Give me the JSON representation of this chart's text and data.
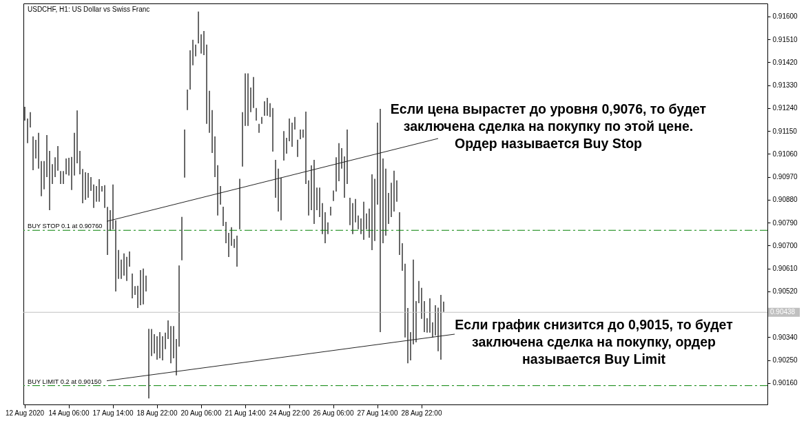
{
  "chart_data": {
    "type": "bar",
    "title": "USDCHF, H1:  US Dollar vs Swiss Franc",
    "categories": [
      "12 Aug 2020",
      null,
      null,
      null,
      null,
      null,
      null,
      null,
      null,
      null,
      null,
      null,
      null,
      null,
      null,
      null,
      "14 Aug 06:00",
      null,
      null,
      null,
      null,
      null,
      null,
      null,
      null,
      null,
      null,
      null,
      null,
      null,
      null,
      null,
      "17 Aug 14:00",
      null,
      null,
      null,
      null,
      null,
      null,
      null,
      null,
      null,
      null,
      null,
      null,
      null,
      null,
      null,
      "18 Aug 22:00",
      null,
      null,
      null,
      null,
      null,
      null,
      null,
      null,
      null,
      null,
      null,
      null,
      null,
      null,
      null,
      "20 Aug 06:00",
      null,
      null,
      null,
      null,
      null,
      null,
      null,
      null,
      null,
      null,
      null,
      null,
      null,
      null,
      null,
      "21 Aug 14:00",
      null,
      null,
      null,
      null,
      null,
      null,
      null,
      null,
      null,
      null,
      null,
      null,
      null,
      null,
      null,
      "24 Aug 22:00",
      null,
      null,
      null,
      null,
      null,
      null,
      null,
      null,
      null,
      null,
      null,
      null,
      null,
      null,
      null,
      "26 Aug 06:00",
      null,
      null,
      null,
      null,
      null,
      null,
      null,
      null,
      null,
      null,
      null,
      null,
      null,
      null,
      null,
      "27 Aug 14:00",
      null,
      null,
      null,
      null,
      null,
      null,
      null,
      null,
      null,
      null,
      null,
      null,
      null,
      null,
      null,
      "28 Aug 22:00",
      null,
      null,
      null,
      null,
      null,
      null,
      null,
      null,
      null,
      null,
      null,
      null,
      null,
      null,
      null,
      null,
      null,
      null,
      null,
      null,
      null,
      null,
      null,
      null,
      null,
      null,
      null,
      null,
      null,
      null,
      null,
      null,
      null,
      null,
      null,
      null,
      null,
      null,
      null,
      null,
      null,
      null,
      null,
      null,
      null,
      null,
      null,
      null,
      null,
      null,
      null,
      null,
      null,
      null,
      null,
      null,
      null,
      null,
      null,
      null,
      null,
      null,
      null,
      null,
      null,
      null,
      null,
      null,
      null,
      null,
      null,
      null,
      null,
      null,
      null,
      null,
      null,
      null,
      null,
      null,
      null,
      null,
      null,
      null,
      null,
      null,
      null,
      null,
      null,
      null,
      null,
      null,
      null,
      null,
      null,
      null,
      null,
      null,
      null,
      null,
      null,
      null,
      null,
      null,
      null,
      null,
      null,
      null,
      null,
      null,
      null,
      null,
      null,
      null,
      null,
      null,
      null,
      null,
      null,
      null,
      null,
      null,
      null,
      null,
      null
    ],
    "base": [
      0.91191,
      0.91102,
      0.91164,
      0.90996,
      0.91042,
      0.91002,
      0.90894,
      0.90921,
      0.90969,
      0.90839,
      0.90942,
      0.90969,
      0.90994,
      0.90942,
      0.90942,
      0.9098,
      0.90975,
      0.90918,
      0.90975,
      0.91023,
      0.9098,
      0.90866,
      0.9088,
      0.90888,
      0.90915,
      0.90848,
      0.90872,
      0.90872,
      0.90912,
      0.90848,
      0.90663,
      0.90758,
      0.90764,
      0.9052,
      0.90569,
      0.90569,
      0.90582,
      0.90561,
      0.90617,
      0.90493,
      0.90506,
      0.90455,
      0.90466,
      0.90469,
      0.9052,
      0.901,
      0.90266,
      0.90276,
      0.90252,
      0.90257,
      0.90249,
      0.90293,
      0.90333,
      0.90238,
      0.90257,
      0.9019,
      0.90303,
      0.90642,
      0.90967,
      0.91232,
      0.91313,
      0.91408,
      0.91443,
      0.91494,
      0.91454,
      0.91448,
      0.91178,
      0.91143,
      0.91064,
      0.90969,
      0.90818,
      0.90861,
      0.90777,
      0.90709,
      0.90655,
      0.90699,
      0.90691,
      0.90617,
      0.90764,
      0.9101,
      0.9117,
      0.9117,
      0.91224,
      0.9124,
      0.91191,
      0.91143,
      0.91178,
      0.9121,
      0.9121,
      0.91205,
      0.91069,
      0.90888,
      0.90834,
      0.90799,
      0.91034,
      0.91061,
      0.9111,
      0.91088,
      0.91156,
      0.91048,
      0.91118,
      0.91124,
      0.90942,
      0.90818,
      0.90839,
      0.90785,
      0.90839,
      0.90812,
      0.90745,
      0.90709,
      0.90745,
      0.90818,
      0.90875,
      0.90912,
      0.90953,
      0.91002,
      0.90888,
      0.90942,
      0.9078,
      0.90745,
      0.90791,
      0.90764,
      0.90745,
      0.90723,
      0.90764,
      0.90731,
      0.90682,
      0.90718,
      0.90861,
      0.9036,
      0.90709,
      0.90739,
      0.90785,
      0.90812,
      0.90834,
      0.90872,
      0.90663,
      0.90601,
      0.90339,
      0.90238,
      0.90249,
      0.90312,
      0.9032,
      0.90474,
      0.90412,
      0.9036,
      0.90358,
      0.90358,
      0.90339,
      0.90347,
      0.90285,
      0.90252,
      0.90439,
      null,
      null,
      null,
      null,
      null,
      null,
      null,
      null,
      null,
      null,
      null,
      null,
      null,
      null,
      null,
      null,
      null,
      null,
      null,
      null,
      null,
      null,
      null,
      null,
      null,
      null,
      null,
      null,
      null,
      null,
      null,
      null,
      null,
      null,
      null,
      null,
      null,
      null,
      null,
      null,
      null,
      null,
      null,
      null,
      null,
      null,
      null,
      null,
      null,
      null,
      null,
      null,
      null,
      null,
      null,
      null,
      null,
      null,
      null,
      null,
      null,
      null,
      null,
      null,
      null,
      null,
      null,
      null,
      null,
      null,
      null,
      null,
      null,
      null,
      null,
      null,
      null,
      null,
      null,
      null,
      null,
      null,
      null,
      null,
      null,
      null,
      null,
      null,
      null,
      null,
      null,
      null,
      null,
      null,
      null,
      null,
      null,
      null,
      null,
      null,
      null,
      null,
      null,
      null,
      null,
      null,
      null,
      null,
      null,
      null,
      null,
      null,
      null,
      null,
      null,
      null,
      null
    ],
    "values": [
      0.00054,
      0.00097,
      0.0006,
      0.00133,
      0.00073,
      0.00141,
      0.00138,
      0.00111,
      0.00165,
      0.00233,
      0.00078,
      0.00078,
      0.00097,
      0.00051,
      0.00051,
      0.00062,
      0.0007,
      0.0013,
      0.00168,
      0.00208,
      0.00092,
      0.00135,
      0.00108,
      0.00097,
      0.00054,
      0.00092,
      0.00062,
      0.00089,
      0.00022,
      0.00089,
      0.00189,
      0.00081,
      0.00176,
      0.00279,
      0.00114,
      0.00076,
      0.00087,
      0.00095,
      0.0006,
      0.00097,
      0.00035,
      0.00087,
      0.00138,
      0.00141,
      0.00062,
      0.00273,
      0.00106,
      0.00076,
      0.00092,
      0.00103,
      0.00095,
      0.00065,
      0.00073,
      0.00146,
      0.00127,
      0.00143,
      0.00319,
      0.00171,
      0.00189,
      0.00081,
      0.00154,
      0.001,
      0.00046,
      0.00125,
      0.00076,
      0.00095,
      0.00311,
      0.00165,
      0.00168,
      0.0016,
      0.00198,
      0.00073,
      0.00076,
      0.00084,
      0.00095,
      0.00073,
      0.00035,
      0.00122,
      0.00198,
      0.00214,
      0.00206,
      0.00206,
      0.00097,
      0.00122,
      0.00049,
      0.00035,
      0.00027,
      0.00057,
      0.0007,
      0.00054,
      0.00171,
      0.00149,
      0.00168,
      0.00168,
      0.00116,
      0.00062,
      0.00089,
      0.00095,
      0.00049,
      0.00068,
      0.00038,
      0.00032,
      0.00284,
      0.00138,
      0.00176,
      0.00252,
      0.00089,
      0.00116,
      0.00122,
      0.00122,
      0.00046,
      0.00035,
      0.00041,
      0.00135,
      0.00149,
      0.00081,
      0.00162,
      0.00214,
      0.00108,
      0.00122,
      0.00092,
      0.00054,
      0.00062,
      0.00149,
      0.00062,
      0.00114,
      0.00298,
      0.00244,
      0.00322,
      0.00877,
      0.00333,
      0.00263,
      0.00122,
      0.00135,
      0.0016,
      0.00084,
      0.00168,
      0.00108,
      0.0029,
      0.00217,
      0.00111,
      0.00333,
      0.00162,
      0.00087,
      0.00122,
      0.00122,
      0.00057,
      0.00135,
      0.0006,
      0.00119,
      0.00171,
      0.00254,
      0.00041,
      null,
      null,
      null,
      null,
      null,
      null,
      null,
      null,
      null,
      null,
      null,
      null,
      null,
      null,
      null,
      null,
      null,
      null,
      null,
      null,
      null,
      null,
      null,
      null,
      null,
      null,
      null,
      null,
      null,
      null,
      null,
      null,
      null,
      null,
      null,
      null,
      null,
      null,
      null,
      null,
      null,
      null,
      null,
      null,
      null,
      null,
      null,
      null,
      null,
      null,
      null,
      null,
      null,
      null,
      null,
      null,
      null,
      null,
      null,
      null,
      null,
      null,
      null,
      null,
      null,
      null,
      null,
      null,
      null,
      null,
      null,
      null,
      null,
      null,
      null,
      null,
      null,
      null,
      null,
      null,
      null,
      null,
      null,
      null,
      null,
      null,
      null,
      null,
      null,
      null,
      null,
      null,
      null,
      null,
      null,
      null,
      null,
      null,
      null,
      null,
      null,
      null,
      null,
      null,
      null,
      null,
      null,
      null,
      null,
      null,
      null,
      null,
      null,
      null,
      null,
      null,
      null
    ],
    "color": "#000000",
    "ylim": [
      0.90076,
      0.91651
    ],
    "yticks": [
      {
        "value": 0.9016,
        "label": "0.90160"
      },
      {
        "value": 0.9025,
        "label": "0.90250"
      },
      {
        "value": 0.9034,
        "label": "0.90340"
      },
      {
        "value": 0.9052,
        "label": "0.90520"
      },
      {
        "value": 0.9061,
        "label": "0.90610"
      },
      {
        "value": 0.907,
        "label": "0.90700"
      },
      {
        "value": 0.9079,
        "label": "0.90790"
      },
      {
        "value": 0.9088,
        "label": "0.90880"
      },
      {
        "value": 0.9097,
        "label": "0.90970"
      },
      {
        "value": 0.9106,
        "label": "0.91060"
      },
      {
        "value": 0.9115,
        "label": "0.91150"
      },
      {
        "value": 0.9124,
        "label": "0.91240"
      },
      {
        "value": 0.9133,
        "label": "0.91330"
      },
      {
        "value": 0.9142,
        "label": "0.91420"
      },
      {
        "value": 0.9151,
        "label": "0.91510"
      },
      {
        "value": 0.916,
        "label": "0.91600"
      }
    ],
    "ref_lines": [
      {
        "axis": "y",
        "value": 0.9076,
        "label": "BUY STOP 0.1 at 0.90760",
        "color": "#008000",
        "line_style": "dashed"
      },
      {
        "axis": "y",
        "value": 0.9015,
        "label": "BUY LIMIT 0.2 at 0.90150",
        "color": "#008000",
        "line_style": "dashed"
      },
      {
        "axis": "y",
        "value": 0.90438,
        "label": "0.90438",
        "color": "#c0c0c0",
        "line_style": "solid"
      }
    ],
    "annotations": [
      "Если цена вырастет до уровня 0,9076, то будет\nзаключена сделка на покупку по этой цене.\nОрдер называется Buy Stop",
      "Если график снизится до 0,9015, то будет\nзаключена сделка на покупку, ордер\nназывается Buy Limit"
    ]
  }
}
